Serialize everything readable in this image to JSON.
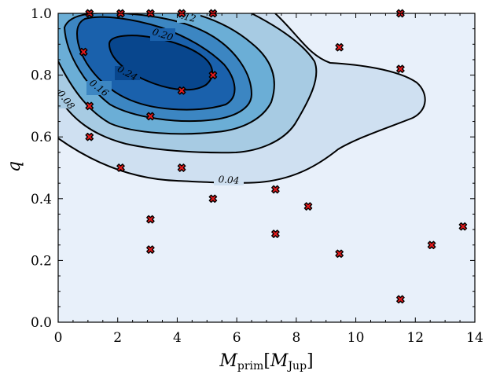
{
  "chart_data": {
    "type": "contour",
    "xlabel_main": "M",
    "xlabel_sub": "prim",
    "xlabel_bracket_main": "M",
    "xlabel_bracket_sub": "Jup",
    "ylabel": "q",
    "xlim": [
      0,
      14
    ],
    "ylim": [
      0,
      1.0
    ],
    "x_ticks": [
      0,
      2,
      4,
      6,
      8,
      10,
      12,
      14
    ],
    "x_tick_labels": [
      "0",
      "2",
      "4",
      "6",
      "8",
      "10",
      "12",
      "14"
    ],
    "y_ticks": [
      0.0,
      0.2,
      0.4,
      0.6,
      0.8,
      1.0
    ],
    "y_tick_labels": [
      "0.0",
      "0.2",
      "0.4",
      "0.6",
      "0.8",
      "1.0"
    ],
    "contour_levels": [
      0.04,
      0.08,
      0.12,
      0.16,
      0.2,
      0.24
    ],
    "contour_labels": [
      "0.04",
      "0.08",
      ".12",
      "0.16",
      "0.20",
      "0.24"
    ],
    "fill_colors": [
      "#e8f0fa",
      "#cfe0f1",
      "#a7cbe3",
      "#6baed6",
      "#3c86c2",
      "#1a61ac",
      "#08468d"
    ],
    "line_color": "#000000",
    "marker": {
      "shape": "x-filled",
      "fill": "#e41a1c",
      "edge": "#000000"
    },
    "points": [
      {
        "x": 1.05,
        "y": 1.0
      },
      {
        "x": 2.1,
        "y": 1.0
      },
      {
        "x": 3.1,
        "y": 1.0
      },
      {
        "x": 4.15,
        "y": 1.0
      },
      {
        "x": 5.2,
        "y": 1.0
      },
      {
        "x": 11.5,
        "y": 1.0
      },
      {
        "x": 0.85,
        "y": 0.875
      },
      {
        "x": 9.45,
        "y": 0.89
      },
      {
        "x": 11.5,
        "y": 0.82
      },
      {
        "x": 5.2,
        "y": 0.8
      },
      {
        "x": 4.15,
        "y": 0.75
      },
      {
        "x": 1.05,
        "y": 0.7
      },
      {
        "x": 3.1,
        "y": 0.667
      },
      {
        "x": 1.05,
        "y": 0.6
      },
      {
        "x": 2.1,
        "y": 0.5
      },
      {
        "x": 4.15,
        "y": 0.5
      },
      {
        "x": 7.3,
        "y": 0.43
      },
      {
        "x": 5.2,
        "y": 0.4
      },
      {
        "x": 8.4,
        "y": 0.375
      },
      {
        "x": 3.1,
        "y": 0.333
      },
      {
        "x": 13.6,
        "y": 0.31
      },
      {
        "x": 7.3,
        "y": 0.286
      },
      {
        "x": 12.55,
        "y": 0.25
      },
      {
        "x": 3.1,
        "y": 0.235
      },
      {
        "x": 9.45,
        "y": 0.222
      },
      {
        "x": 11.5,
        "y": 0.074
      }
    ],
    "grid": false,
    "legend": "none"
  }
}
